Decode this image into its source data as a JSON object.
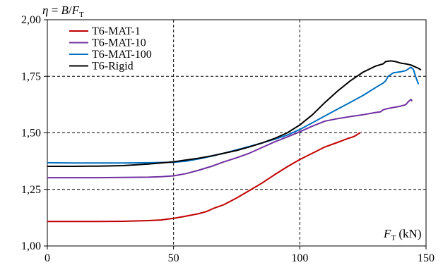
{
  "chart_data": {
    "type": "line",
    "ylabel": "η = B/F",
    "ylabel_parts": {
      "eta": "η",
      "eq": " = ",
      "B": "B",
      "slash": "/",
      "F": "F",
      "sub": "T"
    },
    "xlabel_parts": {
      "F": "F",
      "sub": "T",
      "unit": " (kN)"
    },
    "xlim": [
      0,
      150
    ],
    "ylim": [
      1.0,
      2.0
    ],
    "x_ticks": [
      0,
      50,
      100,
      150
    ],
    "x_tick_labels": [
      "0",
      "50",
      "100",
      "150"
    ],
    "y_ticks": [
      1.0,
      1.25,
      1.5,
      1.75,
      2.0
    ],
    "y_tick_labels": [
      "1,00",
      "1,25",
      "1,50",
      "1,75",
      "2,00"
    ],
    "grid": "dashed, major ticks",
    "legend_position": "top-left",
    "series": [
      {
        "name": "T6-MAT-1",
        "color": "#c00000",
        "points": [
          [
            0,
            1.108
          ],
          [
            10,
            1.108
          ],
          [
            20,
            1.108
          ],
          [
            30,
            1.109
          ],
          [
            40,
            1.112
          ],
          [
            45,
            1.115
          ],
          [
            50,
            1.122
          ],
          [
            55,
            1.132
          ],
          [
            60,
            1.143
          ],
          [
            63,
            1.152
          ],
          [
            66,
            1.167
          ],
          [
            70,
            1.183
          ],
          [
            75,
            1.212
          ],
          [
            80,
            1.245
          ],
          [
            85,
            1.278
          ],
          [
            90,
            1.315
          ],
          [
            95,
            1.35
          ],
          [
            100,
            1.382
          ],
          [
            105,
            1.41
          ],
          [
            110,
            1.438
          ],
          [
            115,
            1.458
          ],
          [
            119,
            1.475
          ],
          [
            121,
            1.482
          ],
          [
            122,
            1.487
          ],
          [
            124,
            1.502
          ]
        ]
      },
      {
        "name": "T6-MAT-10",
        "color": "#7030a0",
        "points": [
          [
            0,
            1.302
          ],
          [
            10,
            1.302
          ],
          [
            20,
            1.302
          ],
          [
            30,
            1.303
          ],
          [
            40,
            1.304
          ],
          [
            45,
            1.306
          ],
          [
            50,
            1.31
          ],
          [
            55,
            1.32
          ],
          [
            60,
            1.335
          ],
          [
            65,
            1.352
          ],
          [
            70,
            1.372
          ],
          [
            75,
            1.39
          ],
          [
            80,
            1.41
          ],
          [
            85,
            1.435
          ],
          [
            90,
            1.46
          ],
          [
            95,
            1.482
          ],
          [
            100,
            1.505
          ],
          [
            105,
            1.53
          ],
          [
            110,
            1.552
          ],
          [
            115,
            1.563
          ],
          [
            120,
            1.572
          ],
          [
            125,
            1.58
          ],
          [
            130,
            1.59
          ],
          [
            132,
            1.593
          ],
          [
            133,
            1.602
          ],
          [
            135,
            1.608
          ],
          [
            140,
            1.618
          ],
          [
            142,
            1.625
          ],
          [
            143,
            1.638
          ],
          [
            144,
            1.648
          ],
          [
            144.5,
            1.64
          ]
        ]
      },
      {
        "name": "T6-MAT-100",
        "color": "#0070c0",
        "points": [
          [
            0,
            1.368
          ],
          [
            10,
            1.367
          ],
          [
            20,
            1.367
          ],
          [
            30,
            1.367
          ],
          [
            40,
            1.368
          ],
          [
            50,
            1.37
          ],
          [
            55,
            1.375
          ],
          [
            60,
            1.385
          ],
          [
            65,
            1.397
          ],
          [
            70,
            1.41
          ],
          [
            75,
            1.425
          ],
          [
            80,
            1.44
          ],
          [
            85,
            1.455
          ],
          [
            90,
            1.472
          ],
          [
            95,
            1.49
          ],
          [
            100,
            1.515
          ],
          [
            105,
            1.545
          ],
          [
            110,
            1.575
          ],
          [
            115,
            1.605
          ],
          [
            120,
            1.635
          ],
          [
            125,
            1.665
          ],
          [
            130,
            1.7
          ],
          [
            133,
            1.72
          ],
          [
            134,
            1.73
          ],
          [
            135,
            1.75
          ],
          [
            137,
            1.765
          ],
          [
            140,
            1.77
          ],
          [
            142,
            1.775
          ],
          [
            143,
            1.783
          ],
          [
            144,
            1.79
          ],
          [
            145,
            1.78
          ],
          [
            146,
            1.745
          ],
          [
            147,
            1.715
          ]
        ]
      },
      {
        "name": "T6-Rigid",
        "color": "#000000",
        "points": [
          [
            0,
            1.352
          ],
          [
            10,
            1.352
          ],
          [
            20,
            1.353
          ],
          [
            30,
            1.355
          ],
          [
            40,
            1.362
          ],
          [
            50,
            1.372
          ],
          [
            55,
            1.38
          ],
          [
            60,
            1.388
          ],
          [
            65,
            1.398
          ],
          [
            70,
            1.41
          ],
          [
            75,
            1.422
          ],
          [
            80,
            1.438
          ],
          [
            85,
            1.455
          ],
          [
            90,
            1.475
          ],
          [
            95,
            1.5
          ],
          [
            100,
            1.535
          ],
          [
            105,
            1.58
          ],
          [
            110,
            1.635
          ],
          [
            115,
            1.685
          ],
          [
            120,
            1.73
          ],
          [
            125,
            1.768
          ],
          [
            130,
            1.795
          ],
          [
            133,
            1.805
          ],
          [
            134,
            1.815
          ],
          [
            136,
            1.818
          ],
          [
            138,
            1.815
          ],
          [
            140,
            1.808
          ],
          [
            142,
            1.805
          ],
          [
            144,
            1.8
          ],
          [
            145,
            1.795
          ],
          [
            147,
            1.785
          ],
          [
            148,
            1.778
          ]
        ]
      }
    ]
  }
}
